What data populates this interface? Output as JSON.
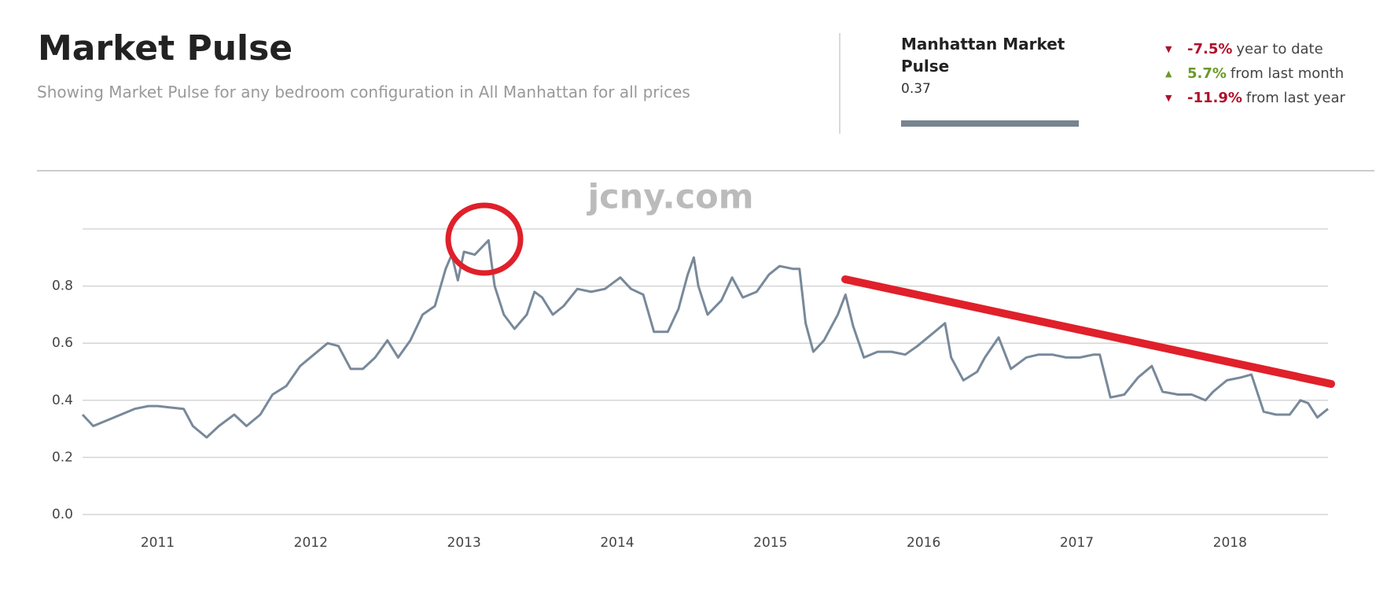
{
  "header": {
    "title": "Market Pulse",
    "subtitle": "Showing Market Pulse for any bedroom configuration in All Manhattan for all prices"
  },
  "summary": {
    "title": "Manhattan Market Pulse",
    "value": "0.37",
    "stats": [
      {
        "change": "-7.5%",
        "label": "year to date"
      },
      {
        "change": "5.7%",
        "label": "from last month"
      },
      {
        "change": "-11.9%",
        "label": "from last year"
      }
    ]
  },
  "watermark": "jcny.com",
  "chart_data": {
    "type": "line",
    "x": [
      2010.51,
      2010.58,
      2010.67,
      2010.76,
      2010.85,
      2010.94,
      2011.0,
      2011.08,
      2011.17,
      2011.23,
      2011.32,
      2011.4,
      2011.5,
      2011.58,
      2011.67,
      2011.75,
      2011.84,
      2011.93,
      2012.02,
      2012.11,
      2012.18,
      2012.26,
      2012.34,
      2012.42,
      2012.5,
      2012.57,
      2012.65,
      2012.73,
      2012.81,
      2012.88,
      2012.92,
      2012.96,
      2013.0,
      2013.07,
      2013.16,
      2013.2,
      2013.26,
      2013.33,
      2013.41,
      2013.46,
      2013.51,
      2013.58,
      2013.65,
      2013.74,
      2013.83,
      2013.92,
      2014.02,
      2014.09,
      2014.17,
      2014.24,
      2014.33,
      2014.4,
      2014.46,
      2014.5,
      2014.53,
      2014.59,
      2014.68,
      2014.75,
      2014.82,
      2014.91,
      2014.99,
      2015.06,
      2015.15,
      2015.19,
      2015.23,
      2015.28,
      2015.35,
      2015.44,
      2015.49,
      2015.54,
      2015.61,
      2015.7,
      2015.79,
      2015.88,
      2015.96,
      2016.05,
      2016.14,
      2016.18,
      2016.26,
      2016.35,
      2016.4,
      2016.49,
      2016.57,
      2016.67,
      2016.75,
      2016.84,
      2016.93,
      2017.02,
      2017.11,
      2017.15,
      2017.22,
      2017.31,
      2017.4,
      2017.49,
      2017.56,
      2017.66,
      2017.75,
      2017.84,
      2017.89,
      2017.98,
      2018.07,
      2018.14,
      2018.22,
      2018.3,
      2018.39,
      2018.46,
      2018.51,
      2018.57,
      2018.64
    ],
    "series": [
      {
        "color": "#78899a",
        "values": [
          0.35,
          0.31,
          0.33,
          0.35,
          0.37,
          0.38,
          0.38,
          0.375,
          0.37,
          0.31,
          0.27,
          0.31,
          0.35,
          0.31,
          0.35,
          0.42,
          0.45,
          0.52,
          0.56,
          0.6,
          0.59,
          0.51,
          0.51,
          0.55,
          0.61,
          0.55,
          0.61,
          0.7,
          0.73,
          0.86,
          0.91,
          0.82,
          0.92,
          0.91,
          0.96,
          0.8,
          0.7,
          0.65,
          0.7,
          0.78,
          0.76,
          0.7,
          0.73,
          0.79,
          0.78,
          0.79,
          0.83,
          0.79,
          0.77,
          0.64,
          0.64,
          0.72,
          0.84,
          0.9,
          0.8,
          0.7,
          0.75,
          0.83,
          0.76,
          0.78,
          0.84,
          0.87,
          0.86,
          0.86,
          0.67,
          0.57,
          0.61,
          0.7,
          0.77,
          0.66,
          0.55,
          0.57,
          0.57,
          0.56,
          0.59,
          0.63,
          0.67,
          0.55,
          0.47,
          0.5,
          0.55,
          0.62,
          0.51,
          0.55,
          0.56,
          0.56,
          0.55,
          0.55,
          0.56,
          0.56,
          0.41,
          0.42,
          0.48,
          0.52,
          0.43,
          0.42,
          0.42,
          0.4,
          0.43,
          0.47,
          0.48,
          0.49,
          0.36,
          0.35,
          0.35,
          0.4,
          0.39,
          0.34,
          0.37
        ]
      }
    ],
    "xlim": [
      2010.51,
      2018.64
    ],
    "xticks": [
      2011,
      2012,
      2013,
      2014,
      2015,
      2016,
      2017,
      2018
    ],
    "ylim": [
      0,
      1.0
    ],
    "yticks": [
      {
        "value": 0,
        "label": "0.0"
      },
      0.2,
      0.4,
      0.6,
      0.8
    ],
    "grid": true
  }
}
